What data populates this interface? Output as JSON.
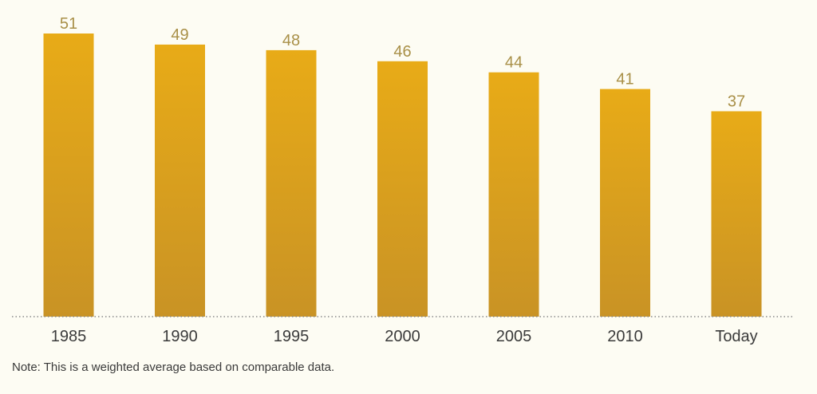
{
  "chart_data": {
    "type": "bar",
    "categories": [
      "1985",
      "1990",
      "1995",
      "2000",
      "2005",
      "2010",
      "Today"
    ],
    "values": [
      51,
      49,
      48,
      46,
      44,
      41,
      37
    ],
    "title": "",
    "xlabel": "",
    "ylabel": "",
    "ylim": [
      0,
      51
    ],
    "grid": false,
    "data_labels": true,
    "colors": {
      "bar_top": "#e8ab17",
      "bar_bottom": "#c99325",
      "value_label": "#a99048",
      "tick_label": "#3a3a3a",
      "baseline": "#8a8a8a",
      "background": "#fdfcf3"
    }
  },
  "note": "Note: This is a weighted average based on comparable data."
}
